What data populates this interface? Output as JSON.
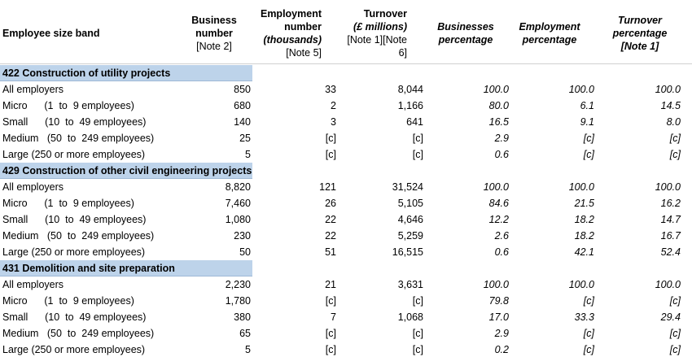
{
  "table": {
    "header": [
      [
        "Employee size band"
      ],
      [
        "Business",
        "number",
        "[Note 2]"
      ],
      [
        "Employment",
        "number",
        "(thousands)",
        "[Note 5]"
      ],
      [
        "Turnover",
        "(£ millions)",
        "[Note 1][Note",
        "6]"
      ],
      [
        "Businesses",
        "percentage"
      ],
      [
        "Employment",
        "percentage"
      ],
      [
        "Turnover",
        "percentage",
        "[Note 1]"
      ]
    ],
    "sections": [
      {
        "title": "422 Construction of utility projects",
        "rows": [
          [
            "All employers",
            "850",
            "33",
            "8,044",
            "100.0",
            "100.0",
            "100.0"
          ],
          [
            "Micro      (1  to  9 employees)",
            "680",
            "2",
            "1,166",
            "80.0",
            "6.1",
            "14.5"
          ],
          [
            "Small      (10  to  49 employees)",
            "140",
            "3",
            "641",
            "16.5",
            "9.1",
            "8.0"
          ],
          [
            "Medium   (50  to  249 employees)",
            "25",
            "[c]",
            "[c]",
            "2.9",
            "[c]",
            "[c]"
          ],
          [
            "Large (250 or more employees)",
            "5",
            "[c]",
            "[c]",
            "0.6",
            "[c]",
            "[c]"
          ]
        ]
      },
      {
        "title": "429 Construction of other civil engineering projects",
        "rows": [
          [
            "All employers",
            "8,820",
            "121",
            "31,524",
            "100.0",
            "100.0",
            "100.0"
          ],
          [
            "Micro      (1  to  9 employees)",
            "7,460",
            "26",
            "5,105",
            "84.6",
            "21.5",
            "16.2"
          ],
          [
            "Small      (10  to  49 employees)",
            "1,080",
            "22",
            "4,646",
            "12.2",
            "18.2",
            "14.7"
          ],
          [
            "Medium   (50  to  249 employees)",
            "230",
            "22",
            "5,259",
            "2.6",
            "18.2",
            "16.7"
          ],
          [
            "Large (250 or more employees)",
            "50",
            "51",
            "16,515",
            "0.6",
            "42.1",
            "52.4"
          ]
        ]
      },
      {
        "title": "431 Demolition and site preparation",
        "rows": [
          [
            "All employers",
            "2,230",
            "21",
            "3,631",
            "100.0",
            "100.0",
            "100.0"
          ],
          [
            "Micro      (1  to  9 employees)",
            "1,780",
            "[c]",
            "[c]",
            "79.8",
            "[c]",
            "[c]"
          ],
          [
            "Small      (10  to  49 employees)",
            "380",
            "7",
            "1,068",
            "17.0",
            "33.3",
            "29.4"
          ],
          [
            "Medium   (50  to  249 employees)",
            "65",
            "[c]",
            "[c]",
            "2.9",
            "[c]",
            "[c]"
          ],
          [
            "Large (250 or more employees)",
            "5",
            "[c]",
            "[c]",
            "0.2",
            "[c]",
            "[c]"
          ]
        ]
      }
    ]
  }
}
